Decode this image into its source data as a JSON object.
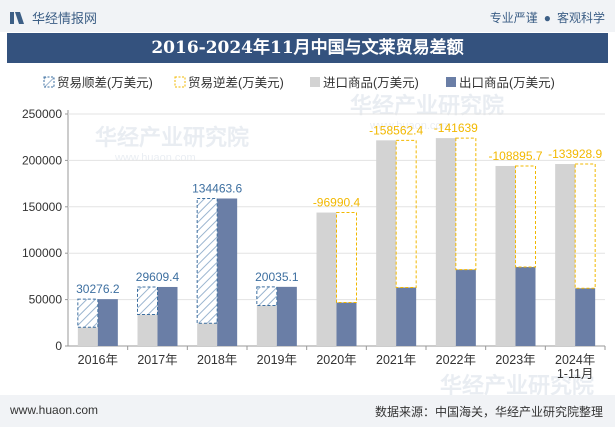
{
  "header": {
    "brand": "华经情报网",
    "tag1": "专业严谨",
    "separator": "●",
    "tag2": "客观科学"
  },
  "title": "2016-2024年11月中国与文莱贸易差额",
  "footer": {
    "left": "www.huaon.com",
    "right": "数据来源：中国海关，华经产业研究院整理"
  },
  "watermark": {
    "text": "华经产业研究院",
    "url": "www.huaon.com"
  },
  "colors": {
    "import": "#d3d3d3",
    "export": "#6a7ea6",
    "surplus": "#3d6fa0",
    "deficit": "#f2b800",
    "surplus_label": "#3d6fa0",
    "deficit_label": "#f2b800"
  },
  "chart_data": {
    "type": "bar",
    "title": "2016-2024年11月中国与文莱贸易差额",
    "categories": [
      "2016年",
      "2017年",
      "2018年",
      "2019年",
      "2020年",
      "2021年",
      "2022年",
      "2023年",
      "2024年\n1-11月"
    ],
    "series": [
      {
        "name": "贸易顺差(万美元)",
        "values": [
          30276.2,
          29609.4,
          134463.6,
          20035.1,
          null,
          null,
          null,
          null,
          null
        ]
      },
      {
        "name": "贸易逆差(万美元)",
        "values": [
          null,
          null,
          null,
          null,
          -96990.4,
          -158562.4,
          -141639,
          -108895.7,
          -133928.9
        ]
      },
      {
        "name": "进口商品(万美元)",
        "values": [
          20200,
          34000,
          24500,
          43700,
          143800,
          221600,
          224000,
          194000,
          196100
        ]
      },
      {
        "name": "出口商品(万美元)",
        "values": [
          50476.2,
          63609.4,
          158963.6,
          63735.1,
          46809.6,
          63037.6,
          82361,
          85104.3,
          62171.1
        ]
      }
    ],
    "labels": [
      "30276.2",
      "29609.4",
      "134463.6",
      "20035.1",
      "-96990.4",
      "-158562.4",
      "-141639",
      "-108895.7",
      "-133928.9"
    ],
    "yticks": [
      "0",
      "50000",
      "100000",
      "150000",
      "200000",
      "250000"
    ],
    "ylim": [
      0,
      250000
    ],
    "legend_position": "top",
    "xlabel": "",
    "ylabel": ""
  }
}
